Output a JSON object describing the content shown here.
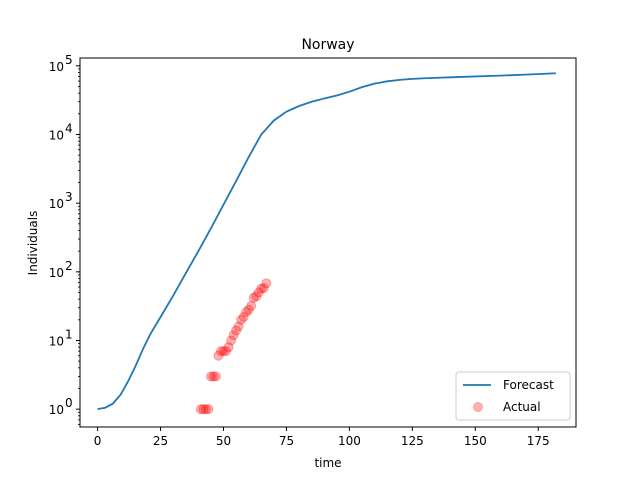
{
  "chart_data": {
    "type": "line",
    "title": "Norway",
    "xlabel": "time",
    "ylabel": "Individuals",
    "xlim": [
      -7,
      190
    ],
    "ylim": [
      0.55,
      130000
    ],
    "yscale": "log",
    "grid": false,
    "legend_position": "bottom-right",
    "x_ticks": [
      0,
      25,
      50,
      75,
      100,
      125,
      150,
      175
    ],
    "y_ticks": [
      {
        "value": 1,
        "base": "10",
        "exp": "0"
      },
      {
        "value": 10,
        "base": "10",
        "exp": "1"
      },
      {
        "value": 100,
        "base": "10",
        "exp": "2"
      },
      {
        "value": 1000,
        "base": "10",
        "exp": "3"
      },
      {
        "value": 10000,
        "base": "10",
        "exp": "4"
      },
      {
        "value": 100000,
        "base": "10",
        "exp": "5"
      }
    ],
    "series": [
      {
        "name": "Forecast",
        "kind": "line",
        "color": "#1f77b4",
        "points": [
          [
            0,
            1.0
          ],
          [
            3,
            1.05
          ],
          [
            6,
            1.2
          ],
          [
            9,
            1.6
          ],
          [
            12,
            2.5
          ],
          [
            15,
            4.2
          ],
          [
            18,
            7.5
          ],
          [
            21,
            12.5
          ],
          [
            25,
            22
          ],
          [
            30,
            45
          ],
          [
            35,
            95
          ],
          [
            40,
            200
          ],
          [
            45,
            430
          ],
          [
            50,
            950
          ],
          [
            55,
            2100
          ],
          [
            60,
            4700
          ],
          [
            65,
            10000
          ],
          [
            70,
            16000
          ],
          [
            75,
            21500
          ],
          [
            80,
            26000
          ],
          [
            85,
            30000
          ],
          [
            90,
            33500
          ],
          [
            95,
            37000
          ],
          [
            100,
            42000
          ],
          [
            105,
            49000
          ],
          [
            110,
            55000
          ],
          [
            115,
            59500
          ],
          [
            120,
            62500
          ],
          [
            125,
            64500
          ],
          [
            130,
            66000
          ],
          [
            140,
            68000
          ],
          [
            150,
            70000
          ],
          [
            160,
            72000
          ],
          [
            170,
            74500
          ],
          [
            182,
            78000
          ]
        ]
      },
      {
        "name": "Actual",
        "kind": "scatter",
        "color": "#ff0000",
        "points": [
          [
            41,
            1
          ],
          [
            42,
            1
          ],
          [
            43,
            1
          ],
          [
            44,
            1
          ],
          [
            45,
            3
          ],
          [
            46,
            3
          ],
          [
            47,
            3
          ],
          [
            48,
            6
          ],
          [
            49,
            7
          ],
          [
            50,
            7
          ],
          [
            51,
            7
          ],
          [
            52,
            8
          ],
          [
            53,
            10
          ],
          [
            54,
            12
          ],
          [
            55,
            14
          ],
          [
            56,
            16
          ],
          [
            57,
            20
          ],
          [
            58,
            22
          ],
          [
            59,
            26
          ],
          [
            60,
            28
          ],
          [
            61,
            32
          ],
          [
            62,
            42
          ],
          [
            63,
            44
          ],
          [
            64,
            50
          ],
          [
            65,
            57
          ],
          [
            66,
            58
          ],
          [
            67,
            68
          ]
        ]
      }
    ]
  }
}
